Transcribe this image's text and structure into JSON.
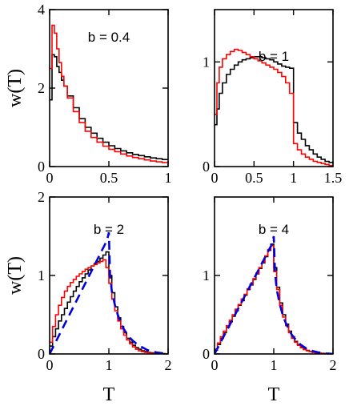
{
  "chart_data": [
    {
      "type": "line",
      "title": "b = 0.4",
      "xlabel": "",
      "ylabel": "w(T)",
      "xlim": [
        0,
        1
      ],
      "ylim": [
        0,
        4
      ],
      "xticks": [
        "0",
        "0.5",
        "1"
      ],
      "xtick_values": [
        0,
        0.5,
        1
      ],
      "yticks": [
        "0",
        "2",
        "4"
      ],
      "ytick_values": [
        0,
        2,
        4
      ],
      "series": [
        {
          "color": "#000000",
          "style": "step",
          "x": [
            0.0,
            0.02,
            0.04,
            0.06,
            0.08,
            0.1,
            0.12,
            0.15,
            0.2,
            0.25,
            0.3,
            0.35,
            0.4,
            0.45,
            0.5,
            0.55,
            0.6,
            0.65,
            0.7,
            0.75,
            0.8,
            0.85,
            0.9,
            0.95,
            1.0
          ],
          "y": [
            1.7,
            2.85,
            2.8,
            2.55,
            2.4,
            2.2,
            2.05,
            1.8,
            1.5,
            1.22,
            1.0,
            0.85,
            0.72,
            0.62,
            0.53,
            0.46,
            0.4,
            0.35,
            0.31,
            0.28,
            0.25,
            0.22,
            0.2,
            0.18,
            0.18
          ]
        },
        {
          "color": "#ff0000",
          "style": "step",
          "x": [
            0.0,
            0.02,
            0.04,
            0.06,
            0.08,
            0.1,
            0.12,
            0.15,
            0.2,
            0.25,
            0.3,
            0.35,
            0.4,
            0.45,
            0.5,
            0.55,
            0.6,
            0.65,
            0.7,
            0.75,
            0.8,
            0.85,
            0.9,
            0.95,
            1.0
          ],
          "y": [
            2.5,
            3.6,
            3.4,
            3.0,
            2.65,
            2.3,
            2.05,
            1.75,
            1.4,
            1.12,
            0.9,
            0.74,
            0.62,
            0.52,
            0.44,
            0.38,
            0.32,
            0.27,
            0.23,
            0.2,
            0.17,
            0.14,
            0.12,
            0.1,
            0.1
          ]
        }
      ]
    },
    {
      "type": "line",
      "title": "b = 1",
      "xlabel": "",
      "ylabel": "",
      "xlim": [
        0,
        1.5
      ],
      "ylim": [
        0,
        1.5
      ],
      "xticks": [
        "0",
        "0.5",
        "1",
        "1.5"
      ],
      "xtick_values": [
        0,
        0.5,
        1,
        1.5
      ],
      "yticks": [
        "0",
        "1"
      ],
      "ytick_values": [
        0,
        1
      ],
      "series": [
        {
          "color": "#000000",
          "style": "step",
          "x": [
            0.0,
            0.03,
            0.06,
            0.1,
            0.15,
            0.2,
            0.25,
            0.3,
            0.35,
            0.4,
            0.45,
            0.5,
            0.55,
            0.6,
            0.65,
            0.7,
            0.75,
            0.8,
            0.85,
            0.9,
            0.95,
            1.0,
            1.05,
            1.1,
            1.15,
            1.2,
            1.25,
            1.3,
            1.35,
            1.4,
            1.45,
            1.5
          ],
          "y": [
            0.4,
            0.55,
            0.7,
            0.8,
            0.88,
            0.93,
            0.97,
            1.0,
            1.02,
            1.03,
            1.04,
            1.05,
            1.05,
            1.04,
            1.03,
            1.02,
            1.0,
            0.98,
            0.96,
            0.95,
            0.94,
            0.42,
            0.32,
            0.26,
            0.2,
            0.16,
            0.12,
            0.09,
            0.07,
            0.05,
            0.04,
            0.04
          ]
        },
        {
          "color": "#ff0000",
          "style": "step",
          "x": [
            0.0,
            0.03,
            0.06,
            0.1,
            0.15,
            0.2,
            0.25,
            0.3,
            0.35,
            0.4,
            0.45,
            0.5,
            0.55,
            0.6,
            0.65,
            0.7,
            0.75,
            0.8,
            0.85,
            0.9,
            0.95,
            1.0,
            1.05,
            1.1,
            1.15,
            1.2,
            1.25,
            1.3,
            1.35,
            1.4,
            1.45,
            1.5
          ],
          "y": [
            0.5,
            0.8,
            0.95,
            1.03,
            1.07,
            1.1,
            1.12,
            1.11,
            1.09,
            1.07,
            1.05,
            1.03,
            1.01,
            0.99,
            0.97,
            0.95,
            0.93,
            0.9,
            0.86,
            0.8,
            0.7,
            0.22,
            0.16,
            0.12,
            0.09,
            0.07,
            0.05,
            0.04,
            0.03,
            0.02,
            0.01,
            0.01
          ]
        }
      ]
    },
    {
      "type": "line",
      "title": "b = 2",
      "xlabel": "T",
      "ylabel": "w(T)",
      "xlim": [
        0,
        2
      ],
      "ylim": [
        0,
        2
      ],
      "xticks": [
        "0",
        "1",
        "2"
      ],
      "xtick_values": [
        0,
        1,
        2
      ],
      "yticks": [
        "0",
        "1",
        "2"
      ],
      "ytick_values": [
        0,
        1,
        2
      ],
      "series": [
        {
          "color": "#000000",
          "style": "step",
          "x": [
            0.0,
            0.05,
            0.1,
            0.15,
            0.2,
            0.25,
            0.3,
            0.35,
            0.4,
            0.45,
            0.5,
            0.55,
            0.6,
            0.65,
            0.7,
            0.75,
            0.8,
            0.85,
            0.9,
            0.95,
            1.0,
            1.05,
            1.1,
            1.15,
            1.2,
            1.25,
            1.3,
            1.35,
            1.4,
            1.45,
            1.5,
            1.55,
            1.6,
            1.65,
            1.7,
            1.75,
            1.8,
            1.85,
            1.9,
            1.95,
            2.0
          ],
          "y": [
            0.1,
            0.22,
            0.32,
            0.42,
            0.5,
            0.58,
            0.66,
            0.73,
            0.8,
            0.86,
            0.92,
            0.97,
            1.02,
            1.07,
            1.12,
            1.15,
            1.18,
            1.22,
            1.26,
            1.3,
            1.0,
            0.78,
            0.6,
            0.46,
            0.35,
            0.27,
            0.2,
            0.15,
            0.11,
            0.08,
            0.06,
            0.04,
            0.03,
            0.02,
            0.015,
            0.01,
            0.008,
            0.006,
            0.004,
            0.002,
            0.002
          ]
        },
        {
          "color": "#ff0000",
          "style": "step",
          "x": [
            0.0,
            0.05,
            0.1,
            0.15,
            0.2,
            0.25,
            0.3,
            0.35,
            0.4,
            0.45,
            0.5,
            0.55,
            0.6,
            0.65,
            0.7,
            0.75,
            0.8,
            0.85,
            0.9,
            0.95,
            1.0,
            1.05,
            1.1,
            1.15,
            1.2,
            1.25,
            1.3,
            1.35,
            1.4,
            1.45,
            1.5,
            1.55,
            1.6,
            1.65,
            1.7,
            1.75,
            1.8,
            1.85,
            1.9,
            1.95,
            2.0
          ],
          "y": [
            0.15,
            0.35,
            0.5,
            0.62,
            0.72,
            0.8,
            0.86,
            0.91,
            0.95,
            0.99,
            1.02,
            1.05,
            1.08,
            1.1,
            1.12,
            1.14,
            1.16,
            1.18,
            1.2,
            1.1,
            0.9,
            0.7,
            0.55,
            0.42,
            0.32,
            0.24,
            0.18,
            0.13,
            0.09,
            0.06,
            0.04,
            0.03,
            0.02,
            0.015,
            0.01,
            0.008,
            0.006,
            0.004,
            0.002,
            0.001,
            0.001
          ]
        },
        {
          "color": "#0000dd",
          "style": "dashed",
          "x": [
            0.0,
            0.97,
            1.0,
            1.02,
            1.05,
            1.1,
            1.15,
            1.2,
            1.25,
            1.3,
            1.35,
            1.4,
            1.45,
            1.5,
            1.55,
            1.6,
            1.65,
            1.7,
            1.75,
            1.8,
            1.85,
            1.9,
            1.95,
            2.0
          ],
          "y": [
            0.0,
            1.45,
            1.55,
            1.0,
            0.8,
            0.63,
            0.5,
            0.4,
            0.32,
            0.26,
            0.21,
            0.17,
            0.14,
            0.11,
            0.09,
            0.07,
            0.05,
            0.04,
            0.03,
            0.02,
            0.015,
            0.01,
            0.005,
            0.0
          ]
        }
      ]
    },
    {
      "type": "line",
      "title": "b = 4",
      "xlabel": "T",
      "ylabel": "",
      "xlim": [
        0,
        2
      ],
      "ylim": [
        0,
        2
      ],
      "xticks": [
        "0",
        "1",
        "2"
      ],
      "xtick_values": [
        0,
        1,
        2
      ],
      "yticks": [
        "0",
        "1"
      ],
      "ytick_values": [
        0,
        1
      ],
      "series": [
        {
          "color": "#000000",
          "style": "step",
          "x": [
            0.0,
            0.05,
            0.1,
            0.15,
            0.2,
            0.25,
            0.3,
            0.35,
            0.4,
            0.45,
            0.5,
            0.55,
            0.6,
            0.65,
            0.7,
            0.75,
            0.8,
            0.85,
            0.9,
            0.95,
            1.0,
            1.05,
            1.1,
            1.15,
            1.2,
            1.25,
            1.3,
            1.35,
            1.4,
            1.45,
            1.5,
            1.55,
            1.6,
            1.65,
            1.7,
            1.75,
            1.8,
            1.85,
            1.9,
            1.95,
            2.0
          ],
          "y": [
            0.05,
            0.12,
            0.2,
            0.27,
            0.34,
            0.41,
            0.48,
            0.55,
            0.62,
            0.68,
            0.75,
            0.82,
            0.88,
            0.95,
            1.02,
            1.09,
            1.16,
            1.24,
            1.32,
            1.4,
            1.1,
            0.85,
            0.65,
            0.5,
            0.38,
            0.29,
            0.22,
            0.16,
            0.12,
            0.09,
            0.06,
            0.045,
            0.03,
            0.02,
            0.015,
            0.01,
            0.008,
            0.006,
            0.004,
            0.002,
            0.002
          ]
        },
        {
          "color": "#ff0000",
          "style": "step",
          "x": [
            0.0,
            0.05,
            0.1,
            0.15,
            0.2,
            0.25,
            0.3,
            0.35,
            0.4,
            0.45,
            0.5,
            0.55,
            0.6,
            0.65,
            0.7,
            0.75,
            0.8,
            0.85,
            0.9,
            0.95,
            1.0,
            1.05,
            1.1,
            1.15,
            1.2,
            1.25,
            1.3,
            1.35,
            1.4,
            1.45,
            1.5,
            1.55,
            1.6,
            1.65,
            1.7,
            1.75,
            1.8,
            1.85,
            1.9,
            1.95,
            2.0
          ],
          "y": [
            0.06,
            0.14,
            0.22,
            0.29,
            0.36,
            0.43,
            0.5,
            0.57,
            0.63,
            0.7,
            0.76,
            0.83,
            0.89,
            0.96,
            1.03,
            1.1,
            1.17,
            1.25,
            1.33,
            1.38,
            1.05,
            0.82,
            0.62,
            0.47,
            0.36,
            0.27,
            0.2,
            0.15,
            0.11,
            0.08,
            0.055,
            0.04,
            0.03,
            0.02,
            0.013,
            0.009,
            0.006,
            0.004,
            0.003,
            0.002,
            0.002
          ]
        },
        {
          "color": "#0000dd",
          "style": "dashed",
          "x": [
            0.0,
            0.97,
            1.0,
            1.02,
            1.05,
            1.1,
            1.15,
            1.2,
            1.25,
            1.3,
            1.35,
            1.4,
            1.45,
            1.5,
            1.55,
            1.6,
            1.65,
            1.7,
            1.75,
            1.8,
            1.85,
            1.9,
            1.95,
            2.0
          ],
          "y": [
            0.0,
            1.4,
            1.5,
            1.05,
            0.82,
            0.64,
            0.5,
            0.4,
            0.32,
            0.25,
            0.2,
            0.16,
            0.12,
            0.095,
            0.07,
            0.055,
            0.04,
            0.03,
            0.02,
            0.015,
            0.01,
            0.006,
            0.003,
            0.0
          ]
        }
      ]
    }
  ]
}
